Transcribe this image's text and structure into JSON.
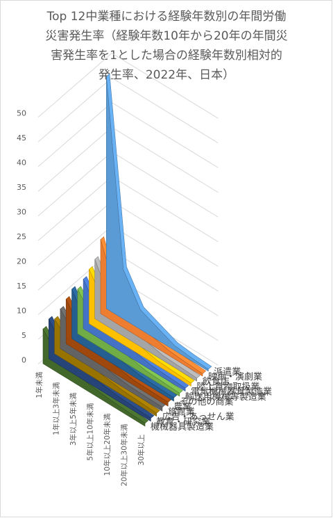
{
  "chart_data": {
    "type": "area",
    "variant": "3d-area",
    "title_lines": [
      "Top 12中業種における経験年数別の年間労働",
      "災害発生率（経験年数10年から20年の年間災",
      "害発生率を1とした場合の経験年数別相対的",
      "発生率、2022年、日本）"
    ],
    "categories": [
      "1年未満",
      "1年以上3年未満",
      "3年以上5年未満",
      "5年以上10年未満",
      "10年以上20年未満",
      "20年以上30年未満",
      "30年以上"
    ],
    "ylim": [
      0,
      50
    ],
    "yticks": [
      0,
      5,
      10,
      15,
      20,
      25,
      30,
      35,
      40,
      45,
      50
    ],
    "grid": true,
    "legend": "none",
    "series": [
      {
        "name": "派遣業",
        "color": "#5b9bd5",
        "values": [
          47,
          10,
          4,
          2.5,
          1,
          0.6,
          0.4
        ]
      },
      {
        "name": "映画・演劇業",
        "color": "#ed7d31",
        "values": [
          15,
          5,
          3,
          1.8,
          1,
          0.7,
          0.5
        ]
      },
      {
        "name": "飲食店",
        "color": "#a5a5a5",
        "values": [
          12,
          5,
          3,
          1.8,
          1,
          0.8,
          0.6
        ]
      },
      {
        "name": "陸上貨物取扱業",
        "color": "#ffc000",
        "values": [
          11,
          5.5,
          3,
          1.8,
          1,
          0.8,
          0.6
        ]
      },
      {
        "name": "電気機械器具製造業",
        "color": "#4472c4",
        "values": [
          10,
          4.5,
          2.8,
          1.7,
          1,
          0.8,
          0.6
        ]
      },
      {
        "name": "輸送用機械等製造業",
        "color": "#70ad47",
        "values": [
          9,
          4.5,
          2.8,
          1.7,
          1,
          0.8,
          0.6
        ]
      },
      {
        "name": "その他の商業",
        "color": "#255e91",
        "values": [
          10,
          4,
          2.6,
          1.6,
          1,
          0.8,
          0.7
        ]
      },
      {
        "name": "農業",
        "color": "#9e480e",
        "values": [
          9,
          4,
          2.5,
          1.6,
          1,
          0.9,
          0.8
        ]
      },
      {
        "name": "旅館業",
        "color": "#636363",
        "values": [
          8,
          4,
          2.5,
          1.5,
          1,
          0.9,
          0.8
        ]
      },
      {
        "name": "広告・あっせん業",
        "color": "#997300",
        "values": [
          7,
          3.5,
          2.2,
          1.5,
          1,
          0.8,
          0.6
        ]
      },
      {
        "name": "教育・研究業",
        "color": "#264478",
        "values": [
          8,
          3.5,
          2.2,
          1.5,
          1,
          0.8,
          0.6
        ]
      },
      {
        "name": "機械器具製造業",
        "color": "#43682b",
        "values": [
          7,
          3,
          2,
          1.4,
          1,
          0.8,
          0.6
        ]
      }
    ]
  }
}
